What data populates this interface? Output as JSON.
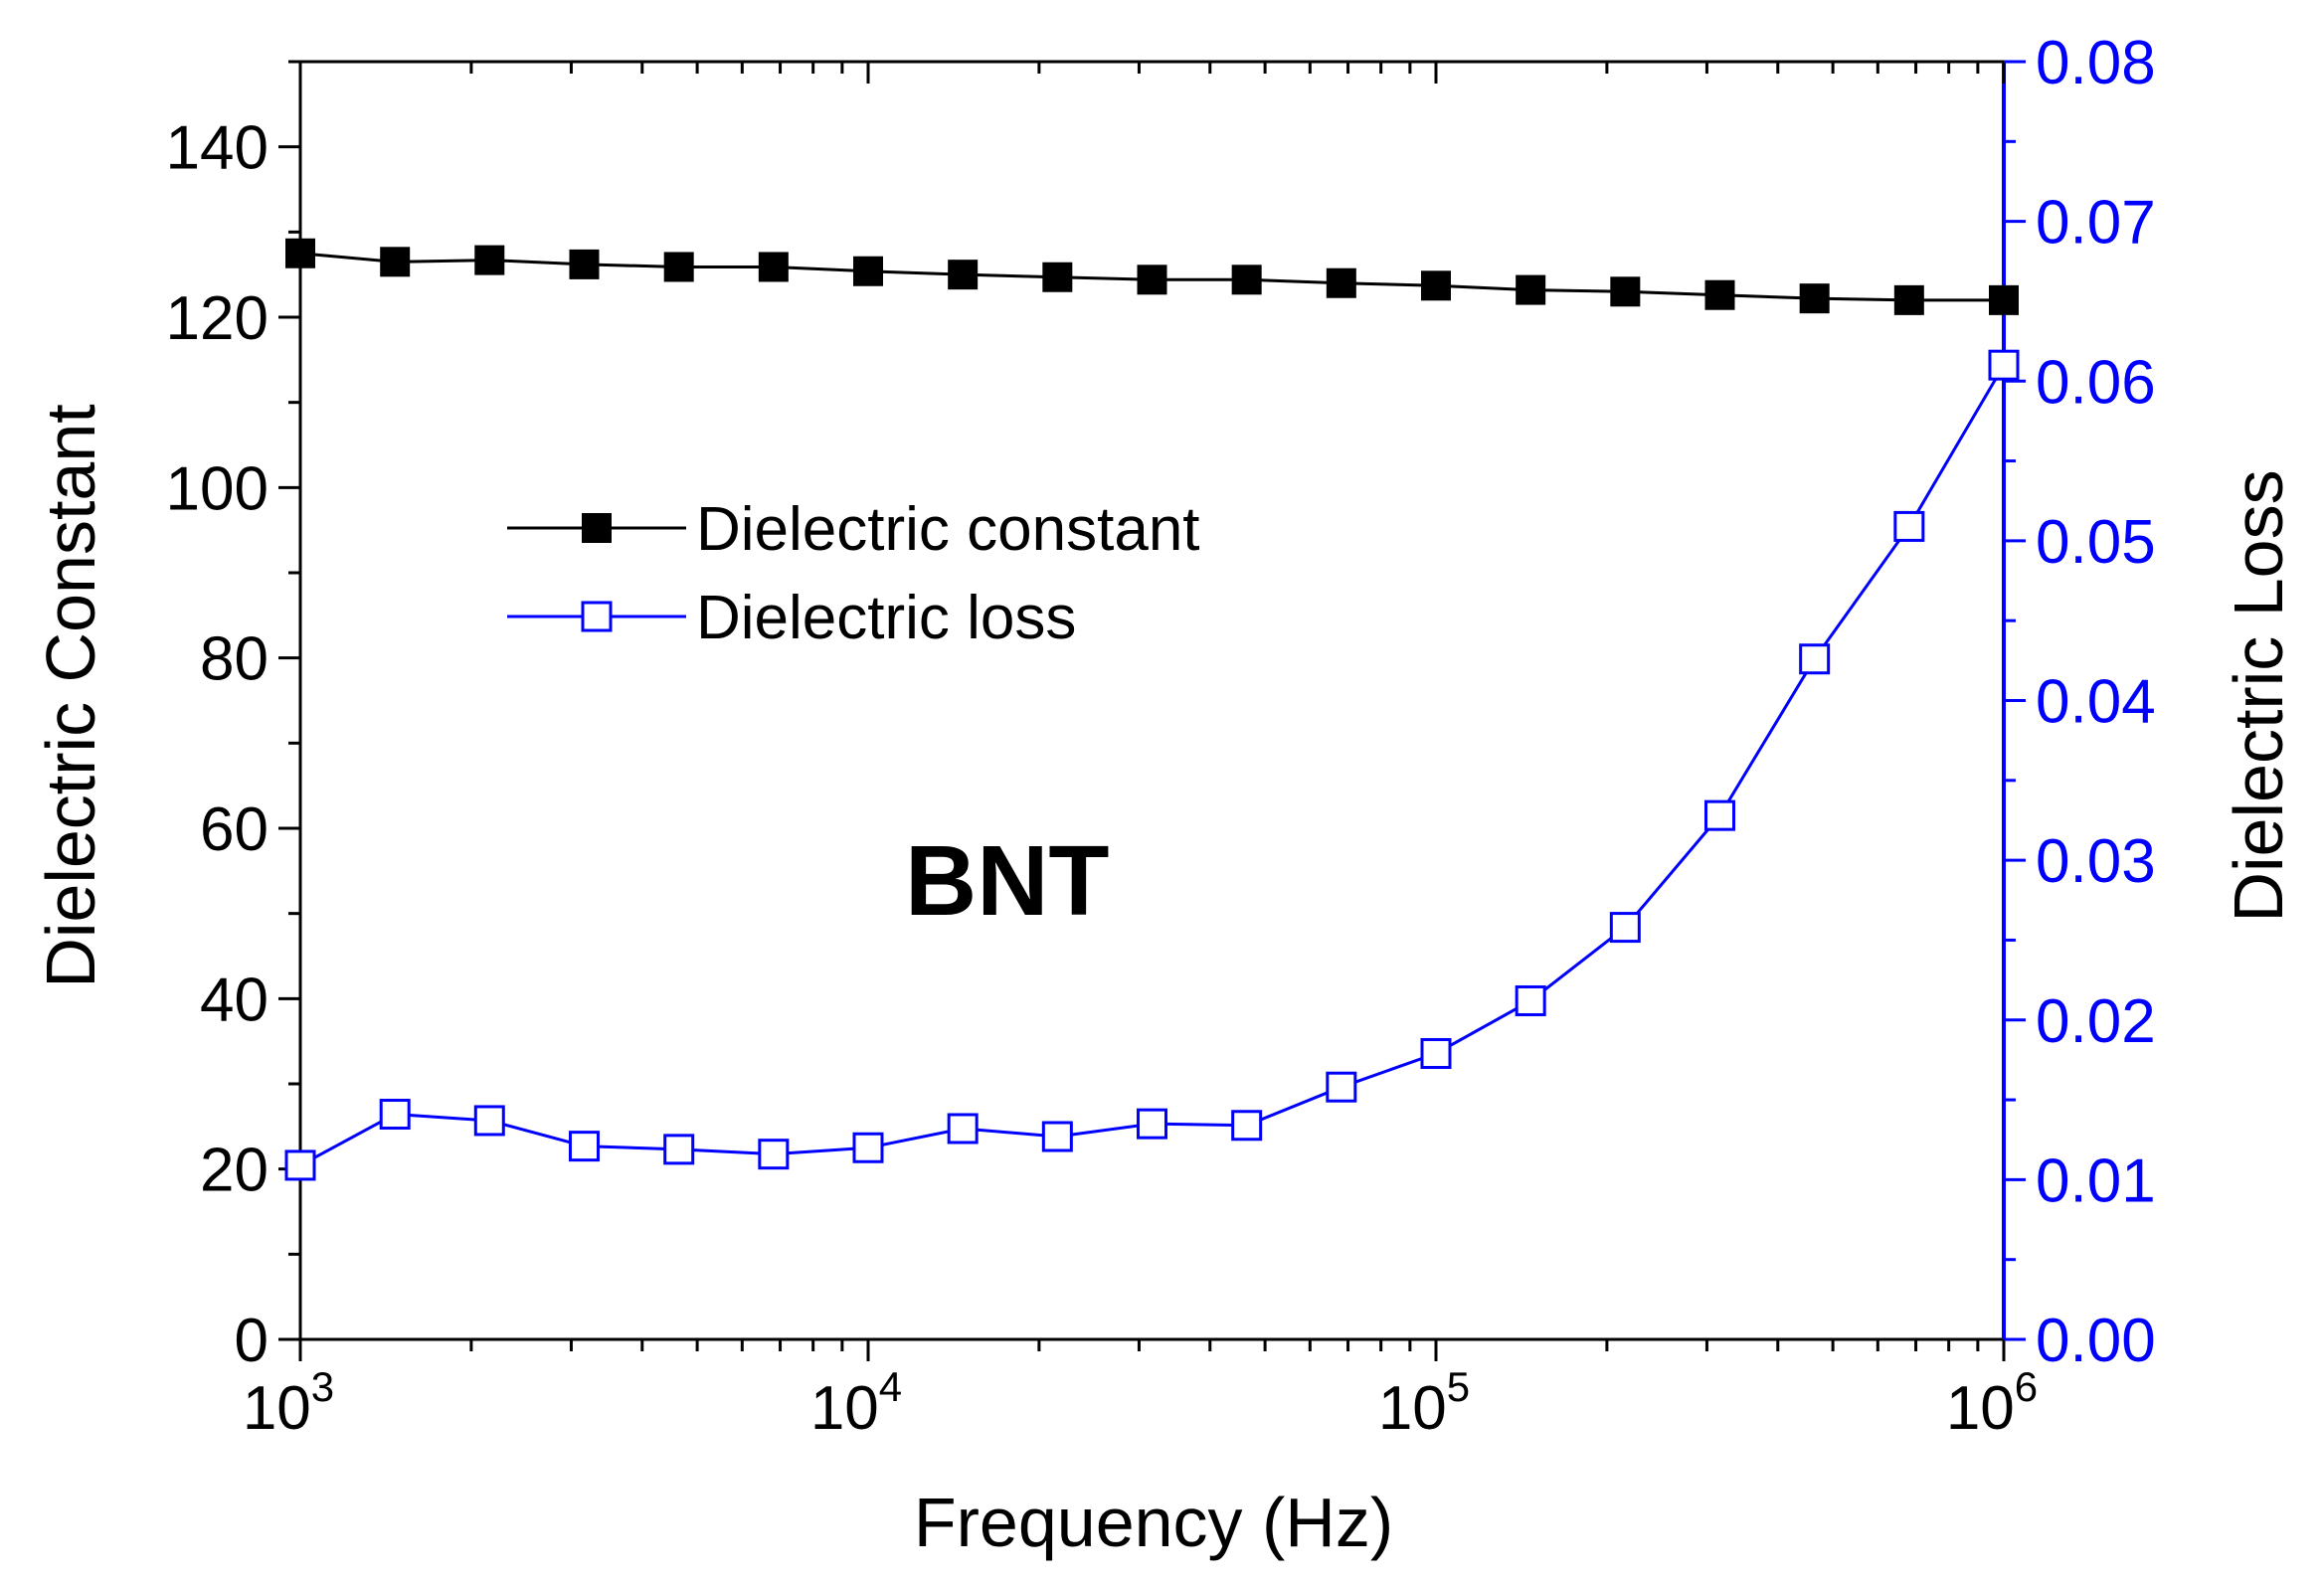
{
  "chart_data": {
    "type": "line",
    "x_scale": "log",
    "x": [
      1000,
      1468,
      2154,
      3162,
      4642,
      6813,
      10000,
      14678,
      21544,
      31623,
      46416,
      68129,
      100000,
      146780,
      215440,
      316230,
      464160,
      681290,
      1000000
    ],
    "xlim": [
      1000,
      1000000
    ],
    "xticks": [
      {
        "value": 1000,
        "base": "10",
        "exp": "3"
      },
      {
        "value": 10000,
        "base": "10",
        "exp": "4"
      },
      {
        "value": 100000,
        "base": "10",
        "exp": "5"
      },
      {
        "value": 1000000,
        "base": "10",
        "exp": "6"
      }
    ],
    "xlabel": "Frequency (Hz)",
    "ylabel_left": "Dielectric Constant",
    "ylabel_right": "Dielectric Loss",
    "ylim_left": [
      0,
      150
    ],
    "ylim_right": [
      0,
      0.08
    ],
    "yticks_left": [
      "0",
      "20",
      "40",
      "60",
      "80",
      "100",
      "120",
      "140"
    ],
    "yticks_right": [
      "0.00",
      "0.01",
      "0.02",
      "0.03",
      "0.04",
      "0.05",
      "0.06",
      "0.07",
      "0.08"
    ],
    "series": [
      {
        "name": "Dielectric constant",
        "axis": "left",
        "color": "#000000",
        "marker": "filled-square",
        "values": [
          127.5,
          126.5,
          126.7,
          126.2,
          125.9,
          125.9,
          125.4,
          125.0,
          124.7,
          124.4,
          124.4,
          124.0,
          123.7,
          123.2,
          123.0,
          122.6,
          122.2,
          122.0,
          122.0
        ]
      },
      {
        "name": "Dielectric loss",
        "axis": "right",
        "color": "#0000ff",
        "marker": "open-square",
        "values": [
          0.0109,
          0.0141,
          0.0137,
          0.0121,
          0.0119,
          0.0116,
          0.012,
          0.0132,
          0.0127,
          0.0135,
          0.0134,
          0.0158,
          0.0179,
          0.0212,
          0.0258,
          0.0328,
          0.0426,
          0.0509,
          0.061
        ]
      }
    ],
    "legend_position": "upper-left",
    "annotation": "BNT",
    "grid": false
  }
}
